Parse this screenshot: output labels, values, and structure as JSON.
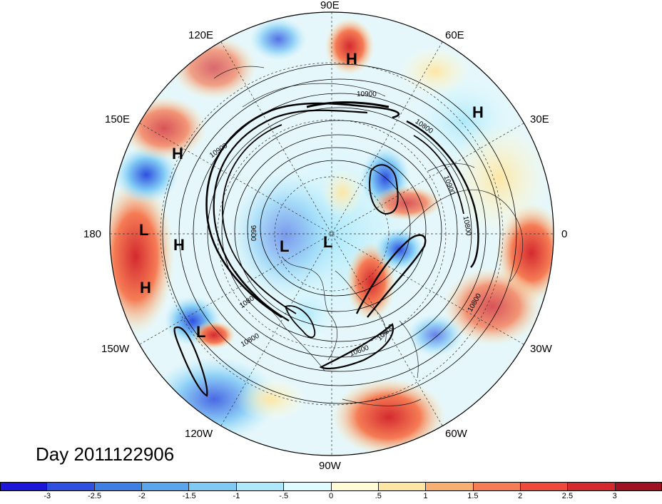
{
  "map": {
    "longitude_labels": [
      {
        "text": "90E",
        "key": "lon-90e"
      },
      {
        "text": "60E",
        "key": "lon-60e"
      },
      {
        "text": "30E",
        "key": "lon-30e"
      },
      {
        "text": "0",
        "key": "lon-0"
      },
      {
        "text": "30W",
        "key": "lon-30w"
      },
      {
        "text": "60W",
        "key": "lon-60w"
      },
      {
        "text": "90W",
        "key": "lon-90w"
      },
      {
        "text": "120W",
        "key": "lon-120w"
      },
      {
        "text": "150W",
        "key": "lon-150w"
      },
      {
        "text": "180",
        "key": "lon-180"
      },
      {
        "text": "150E",
        "key": "lon-150e"
      },
      {
        "text": "120E",
        "key": "lon-120e"
      }
    ],
    "pressure_centers": [
      "H",
      "H",
      "H",
      "H",
      "H",
      "L",
      "L",
      "L",
      "L"
    ],
    "contour_labels": [
      "10900",
      "10800",
      "10900",
      "10900",
      "9600",
      "10800",
      "10800",
      "10800",
      "10600",
      "10800",
      "10600"
    ],
    "day_label": "Day 2011122906"
  },
  "colorbar": {
    "colors": [
      "#1d15d8",
      "#2e4fe0",
      "#3d7fe3",
      "#5aa6ee",
      "#7fc9f5",
      "#aee9fb",
      "#e0fbff",
      "#fffbd7",
      "#fde6a3",
      "#f9ae72",
      "#f57c55",
      "#ee4a3c",
      "#d42a2f",
      "#a11124"
    ],
    "tick_labels": [
      "-3",
      "-2.5",
      "-2",
      "-1.5",
      "-1",
      "-.5",
      "0",
      ".5",
      "1",
      "1.5",
      "2",
      "2.5",
      "3"
    ]
  }
}
